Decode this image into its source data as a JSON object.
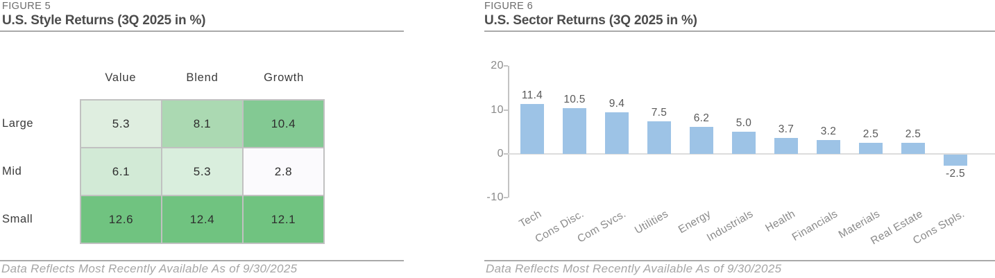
{
  "page": {
    "footer_text": "Data Reflects Most Recently Available As of 9/30/2025"
  },
  "figures": [
    {
      "label": "FIGURE 5",
      "title": "U.S. Style Returns (3Q 2025 in %)"
    },
    {
      "label": "FIGURE 6",
      "title": "U.S. Sector Returns (3Q 2025 in %)"
    }
  ],
  "chart_data": [
    {
      "type": "heatmap",
      "title": "U.S. Style Returns (3Q 2025 in %)",
      "columns": [
        "Value",
        "Blend",
        "Growth"
      ],
      "rows": [
        "Large",
        "Mid",
        "Small"
      ],
      "values": [
        [
          5.3,
          8.1,
          10.4
        ],
        [
          6.1,
          5.3,
          2.8
        ],
        [
          12.6,
          12.4,
          12.1
        ]
      ],
      "cell_colors": [
        [
          "#dfeee0",
          "#abd9b2",
          "#83c993"
        ],
        [
          "#d2ead6",
          "#d9eedd",
          "#fbfafd"
        ],
        [
          "#70c380",
          "#70c380",
          "#70c380"
        ]
      ],
      "border_color": "#c1c1c1"
    },
    {
      "type": "bar",
      "title": "U.S. Sector Returns (3Q 2025 in %)",
      "categories": [
        "Tech",
        "Cons Disc.",
        "Com Svcs.",
        "Utilities",
        "Energy",
        "Industrials",
        "Health",
        "Financials",
        "Materials",
        "Real Estate",
        "Cons Stpls."
      ],
      "values": [
        11.4,
        10.5,
        9.4,
        7.5,
        6.2,
        5.0,
        3.7,
        3.2,
        2.5,
        2.5,
        -2.5
      ],
      "value_labels": [
        "11.4",
        "10.5",
        "9.4",
        "7.5",
        "6.2",
        "5.0",
        "3.7",
        "3.2",
        "2.5",
        "2.5",
        "-2.5"
      ],
      "xlabel": "",
      "ylabel": "",
      "ylim": [
        -10,
        20
      ],
      "yticks": [
        20,
        10,
        0,
        -10
      ],
      "bar_color": "#9dc3e6",
      "grid": false,
      "data_labels": true,
      "legend_position": "none"
    }
  ],
  "colors": {
    "title_dark": "#4c4c4c",
    "figure_label_gray": "#6b6b6b",
    "rule_gray": "#a9a9a9",
    "footer_gray": "#a6a6a6",
    "bar_blue": "#9dc3e6",
    "axis_gray": "#c3c3c3"
  }
}
